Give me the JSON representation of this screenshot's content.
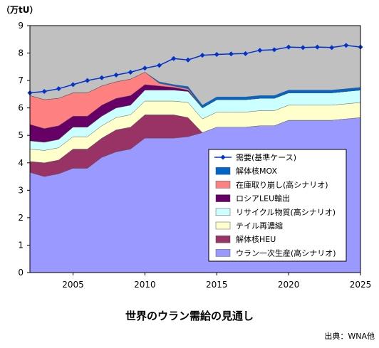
{
  "chart_data": {
    "type": "area",
    "title": "世界のウラン需給の見通し",
    "ylabel": "（万tU）",
    "source": "出典：WNA他",
    "xlim": [
      2002,
      2025
    ],
    "ylim": [
      0,
      9
    ],
    "y_ticks": [
      0,
      1,
      2,
      3,
      4,
      5,
      6,
      7,
      8,
      9
    ],
    "x_ticks": [
      2005,
      2010,
      2015,
      2020,
      2025
    ],
    "grid": false,
    "legend_position": "inside-bottom-right",
    "plot_background": "#c0c0c0",
    "x": [
      2002,
      2003,
      2004,
      2005,
      2006,
      2007,
      2008,
      2009,
      2010,
      2011,
      2012,
      2013,
      2014,
      2015,
      2016,
      2017,
      2018,
      2019,
      2020,
      2021,
      2022,
      2023,
      2024,
      2025
    ],
    "series": [
      {
        "name": "ウラン一次生産(高シナリオ)",
        "color": "#9999ff",
        "values": [
          3.65,
          3.5,
          3.6,
          3.8,
          3.8,
          4.2,
          4.4,
          4.5,
          4.9,
          4.9,
          4.9,
          4.95,
          5.1,
          5.3,
          5.3,
          5.3,
          5.35,
          5.35,
          5.55,
          5.55,
          5.55,
          5.55,
          5.6,
          5.65
        ]
      },
      {
        "name": "解体核HEU",
        "color": "#993366",
        "values": [
          0.4,
          0.5,
          0.5,
          0.7,
          0.7,
          0.7,
          0.8,
          0.8,
          0.85,
          0.85,
          0.85,
          0.7,
          0,
          0,
          0,
          0,
          0,
          0,
          0,
          0,
          0,
          0,
          0,
          0
        ]
      },
      {
        "name": "テイル再濃縮",
        "color": "#ffffcc",
        "values": [
          0.45,
          0.45,
          0.45,
          0.45,
          0.45,
          0.45,
          0.45,
          0.45,
          0.5,
          0.5,
          0.5,
          0.55,
          0.5,
          0.55,
          0.55,
          0.55,
          0.55,
          0.55,
          0.55,
          0.55,
          0.55,
          0.55,
          0.55,
          0.55
        ]
      },
      {
        "name": "リサイクル物質(高シナリオ)",
        "color": "#ccffff",
        "values": [
          0.3,
          0.3,
          0.3,
          0.35,
          0.35,
          0.35,
          0.35,
          0.35,
          0.4,
          0.4,
          0.4,
          0.4,
          0.4,
          0.45,
          0.45,
          0.45,
          0.45,
          0.45,
          0.45,
          0.45,
          0.45,
          0.45,
          0.45,
          0.45
        ]
      },
      {
        "name": "ロシアLEU輸出",
        "color": "#660066",
        "values": [
          0.6,
          0.5,
          0.5,
          0.4,
          0.4,
          0.4,
          0.35,
          0.35,
          0.2,
          0.15,
          0.1,
          0.05,
          0,
          0,
          0,
          0,
          0,
          0,
          0,
          0,
          0,
          0,
          0,
          0
        ]
      },
      {
        "name": "在庫取り崩し(高シナリオ)",
        "color": "#ff8080",
        "values": [
          1.05,
          1.05,
          1.0,
          0.85,
          0.85,
          0.7,
          0.6,
          0.6,
          0.45,
          0.1,
          0.05,
          0.05,
          0,
          0,
          0,
          0,
          0,
          0,
          0,
          0,
          0,
          0,
          0,
          0
        ]
      },
      {
        "name": "解体核MOX",
        "color": "#0066cc",
        "values": [
          0,
          0,
          0,
          0,
          0,
          0,
          0,
          0,
          0,
          0.05,
          0.05,
          0.08,
          0.1,
          0.1,
          0.1,
          0.1,
          0.1,
          0.1,
          0.1,
          0.1,
          0.1,
          0.1,
          0.1,
          0.1
        ]
      }
    ],
    "demand": {
      "name": "需要(基準ケース)",
      "color": "#0033cc",
      "values": [
        6.55,
        6.6,
        6.7,
        6.85,
        7.0,
        7.1,
        7.2,
        7.3,
        7.45,
        7.55,
        7.8,
        7.75,
        7.92,
        7.95,
        7.97,
        7.98,
        8.1,
        8.12,
        8.22,
        8.2,
        8.22,
        8.2,
        8.28,
        8.22
      ]
    },
    "legend_order": [
      "需要(基準ケース)",
      "解体核MOX",
      "在庫取り崩し(高シナリオ)",
      "ロシアLEU輸出",
      "リサイクル物質(高シナリオ)",
      "テイル再濃縮",
      "解体核HEU",
      "ウラン一次生産(高シナリオ)"
    ]
  }
}
